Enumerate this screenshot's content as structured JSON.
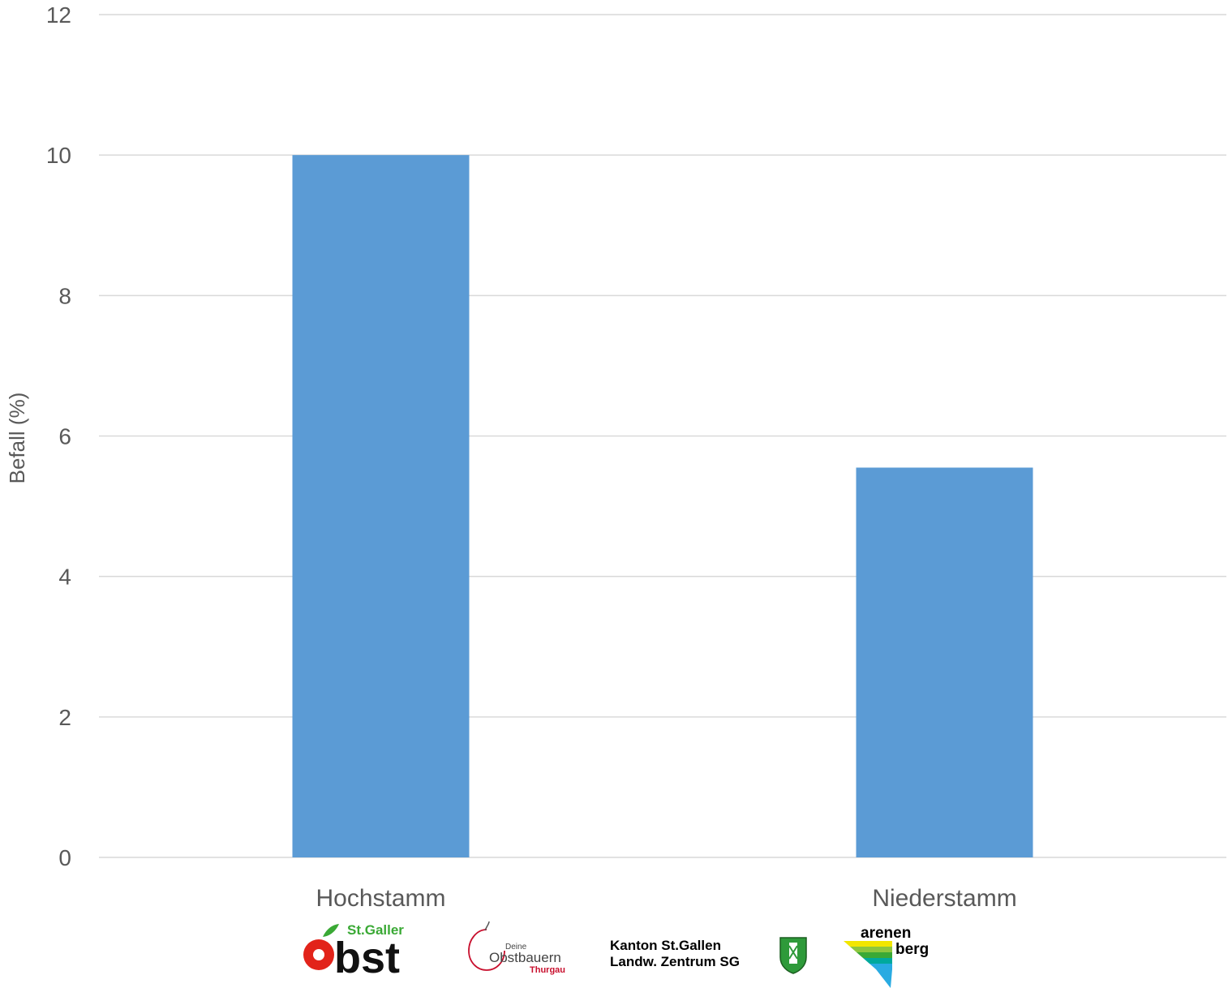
{
  "chart_data": {
    "type": "bar",
    "categories": [
      "Hochstamm",
      "Niederstamm"
    ],
    "values": [
      10.0,
      5.55
    ],
    "title": "",
    "xlabel": "",
    "ylabel": "Befall (%)",
    "ylim": [
      0,
      12
    ],
    "yticks": [
      "0",
      "2",
      "4",
      "6",
      "8",
      "10",
      "12"
    ],
    "grid": true,
    "bar_color": "#5b9bd5",
    "grid_color": "#d9d9d9"
  },
  "logos": {
    "stgaller_obst": {
      "top_text": "St.Galler",
      "main_text": "Obst",
      "main_bst": "bst",
      "green": "#3aa935",
      "red": "#e2231a"
    },
    "obstbauern_thurgau": {
      "small": "Deine",
      "main": "Obstbauern",
      "region": "Thurgau"
    },
    "kanton_sg": {
      "line1": "Kanton St.Gallen",
      "line2": "Landw. Zentrum SG"
    },
    "arenenberg": {
      "line1": "arenen",
      "line2": "berg"
    }
  }
}
